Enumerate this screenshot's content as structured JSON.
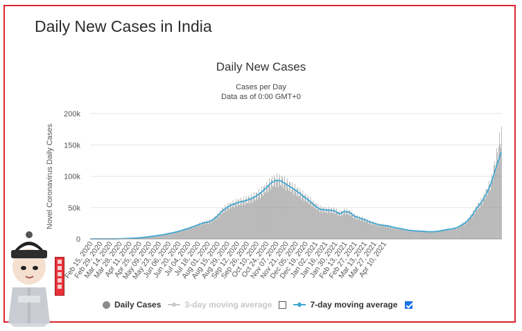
{
  "page": {
    "title": "Daily New Cases in India"
  },
  "chart_data": {
    "type": "bar",
    "title": "Daily New Cases",
    "subtitle": "Cases per Day",
    "subtitle2": "Data as of 0:00 GMT+0",
    "xlabel": "",
    "ylabel": "Novel Coronavirus Daily Cases",
    "ylim": [
      0,
      200000
    ],
    "yticks": [
      0,
      50000,
      100000,
      150000,
      200000
    ],
    "ytick_labels": [
      "0",
      "50k",
      "100k",
      "150k",
      "200k"
    ],
    "x_tick_labels": [
      "Feb 15, 2020",
      "Feb 29, 2020",
      "Mar 14, 2020",
      "Mar 28, 2020",
      "Apr 11, 2020",
      "Apr 25, 2020",
      "May 09, 2020",
      "May 23, 2020",
      "Jun 06, 2020",
      "Jun 20, 2020",
      "Jul 04, 2020",
      "Jul 18, 2020",
      "Aug 01, 2020",
      "Aug 15, 2020",
      "Aug 29, 2020",
      "Sep 12, 2020",
      "Sep 26, 2020",
      "Oct 10, 2020",
      "Oct 24, 2020",
      "Nov 07, 2020",
      "Nov 21, 2020",
      "Dec 05, 2020",
      "Dec 19, 2020",
      "Jan 02, 2021",
      "Jan 16, 2021",
      "Jan 30, 2021",
      "Feb 13, 2021",
      "Feb 27, 2021",
      "Mar 13, 2021",
      "Mar 27, 2021",
      "Apr 10, 2021"
    ],
    "grid": true,
    "legend_position": "bottom",
    "series": [
      {
        "name": "Daily Cases",
        "kind": "bar",
        "color": "#8c8c8c",
        "enabled": true,
        "weekly_values": [
          0,
          0,
          0,
          0,
          10,
          80,
          300,
          600,
          900,
          1300,
          1700,
          2500,
          3600,
          4600,
          5800,
          6900,
          8500,
          10200,
          12100,
          14500,
          16800,
          19500,
          22500,
          25500,
          27000,
          30000,
          37000,
          45000,
          51000,
          55000,
          58000,
          60000,
          62000,
          65000,
          69000,
          75000,
          82000,
          90000,
          94000,
          93000,
          88000,
          83000,
          78000,
          72000,
          66000,
          60000,
          53000,
          48000,
          46000,
          46000,
          45000,
          40000,
          44000,
          42000,
          36000,
          33000,
          31000,
          27000,
          25000,
          22000,
          22000,
          20000,
          18000,
          16500,
          15500,
          13500,
          13000,
          13000,
          12500,
          11500,
          11000,
          12000,
          14000,
          15000,
          15500,
          17500,
          23000,
          28000,
          38000,
          50000,
          60000,
          75000,
          93000,
          130000,
          168000
        ]
      },
      {
        "name": "3-day moving average",
        "kind": "line",
        "color": "#c8c8c8",
        "enabled": false
      },
      {
        "name": "7-day moving average",
        "kind": "line",
        "color": "#3ea6d1",
        "enabled": true,
        "weekly_values": [
          0,
          0,
          0,
          0,
          10,
          70,
          250,
          550,
          850,
          1250,
          1650,
          2400,
          3500,
          4500,
          5700,
          6800,
          8400,
          10000,
          11900,
          14300,
          16600,
          19300,
          22200,
          25200,
          26800,
          29800,
          36500,
          44500,
          50500,
          54500,
          57500,
          59500,
          61500,
          64500,
          68500,
          74500,
          81500,
          89500,
          93500,
          92500,
          87500,
          82500,
          77500,
          71500,
          65500,
          59500,
          52500,
          47500,
          46000,
          46000,
          44500,
          40000,
          44000,
          42500,
          36500,
          33500,
          31000,
          27500,
          25000,
          22500,
          21500,
          20500,
          18500,
          17000,
          15500,
          14000,
          13000,
          12500,
          12000,
          11500,
          11500,
          12000,
          13500,
          15000,
          16000,
          18000,
          22500,
          27500,
          37000,
          49000,
          59000,
          72000,
          90000,
          115000,
          138000
        ]
      }
    ],
    "legend": {
      "daily_label": "Daily Cases",
      "ma3_label": "3-day moving average",
      "ma3_checked": false,
      "ma7_label": "7-day moving average",
      "ma7_checked": true
    }
  }
}
